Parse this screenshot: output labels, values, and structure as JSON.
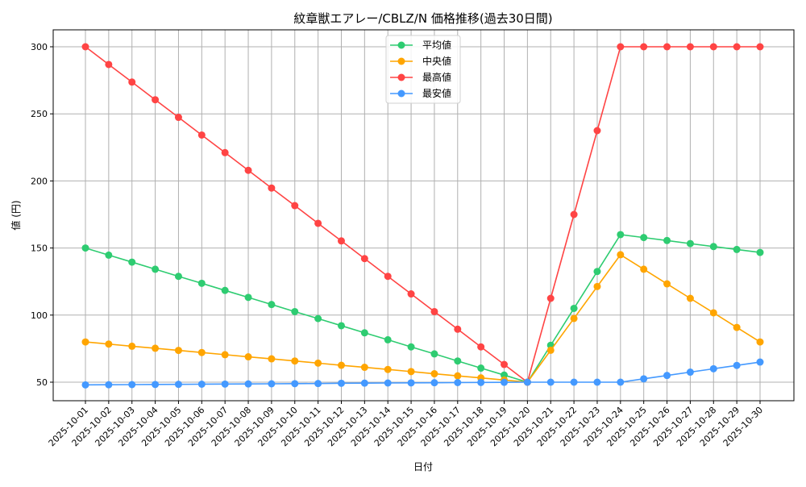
{
  "chart_data": {
    "type": "line",
    "title": "紋章獣エアレー/CBLZ/N 価格推移(過去30日間)",
    "xlabel": "日付",
    "ylabel": "値 (円)",
    "ylim": [
      35,
      312
    ],
    "yticks": [
      50,
      100,
      150,
      200,
      250,
      300
    ],
    "grid": true,
    "legend_position": "top-center",
    "categories": [
      "2025-10-01",
      "2025-10-02",
      "2025-10-03",
      "2025-10-04",
      "2025-10-05",
      "2025-10-06",
      "2025-10-07",
      "2025-10-08",
      "2025-10-09",
      "2025-10-10",
      "2025-10-11",
      "2025-10-12",
      "2025-10-13",
      "2025-10-14",
      "2025-10-15",
      "2025-10-16",
      "2025-10-17",
      "2025-10-18",
      "2025-10-19",
      "2025-10-20",
      "2025-10-21",
      "2025-10-22",
      "2025-10-23",
      "2025-10-24",
      "2025-10-25",
      "2025-10-26",
      "2025-10-27",
      "2025-10-28",
      "2025-10-29",
      "2025-10-30"
    ],
    "series": [
      {
        "name": "平均値",
        "color": "#2ecc71",
        "values": [
          150,
          144.7,
          139.5,
          134.2,
          128.9,
          123.7,
          118.4,
          113.2,
          107.9,
          102.6,
          97.4,
          92.1,
          86.8,
          81.6,
          76.3,
          71.1,
          65.8,
          60.5,
          55.3,
          50,
          77.5,
          105,
          132.5,
          160,
          157.8,
          155.6,
          153.3,
          151.1,
          148.9,
          146.7
        ]
      },
      {
        "name": "中央値",
        "color": "#ffa500",
        "values": [
          80,
          78.4,
          76.8,
          75.3,
          73.7,
          72.1,
          70.5,
          68.9,
          67.4,
          65.8,
          64.2,
          62.6,
          61.1,
          59.5,
          57.9,
          56.3,
          54.7,
          53.2,
          51.6,
          50,
          73.8,
          97.5,
          121.3,
          145,
          134.2,
          123.3,
          112.5,
          101.7,
          90.8,
          80
        ]
      },
      {
        "name": "最高値",
        "color": "#ff4444",
        "values": [
          300,
          286.8,
          273.7,
          260.5,
          247.4,
          234.2,
          221.1,
          207.9,
          194.7,
          181.6,
          168.4,
          155.3,
          142.1,
          128.9,
          115.8,
          102.6,
          89.5,
          76.3,
          63.2,
          50,
          112.5,
          175,
          237.5,
          300,
          300,
          300,
          300,
          300,
          300,
          300
        ]
      },
      {
        "name": "最安値",
        "color": "#4499ff",
        "values": [
          48,
          48.1,
          48.2,
          48.3,
          48.4,
          48.5,
          48.6,
          48.7,
          48.8,
          48.9,
          49,
          49.2,
          49.3,
          49.4,
          49.5,
          49.6,
          49.7,
          49.8,
          49.9,
          50,
          50,
          50,
          50,
          50,
          52.5,
          55,
          57.5,
          60,
          62.5,
          65
        ]
      }
    ]
  }
}
